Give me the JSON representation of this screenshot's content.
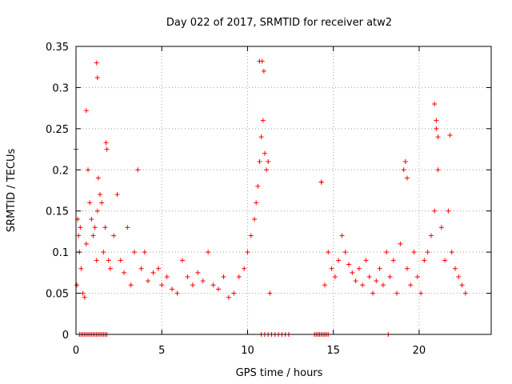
{
  "chart_data": {
    "type": "scatter",
    "title": "Day 022 of 2017, SRMTID for receiver atw2",
    "xlabel": "GPS time / hours",
    "ylabel": "SRMTID / TECUs",
    "xlim": [
      0,
      24.2
    ],
    "ylim": [
      0,
      0.35
    ],
    "xticks": [
      0,
      5,
      10,
      15,
      20
    ],
    "xtick_labels": [
      "0",
      "5",
      "10",
      "15",
      "20"
    ],
    "yticks": [
      0,
      0.05,
      0.1,
      0.15,
      0.2,
      0.25,
      0.3,
      0.35
    ],
    "ytick_labels": [
      "0",
      "0.05",
      "0.1",
      "0.15",
      "0.2",
      "0.25",
      "0.3",
      "0.35"
    ],
    "grid": true,
    "marker": "+",
    "series": [
      {
        "name": "SRMTID",
        "color": "#ff0000",
        "x": [
          0.0,
          0.05,
          0.1,
          0.15,
          0.2,
          0.25,
          0.3,
          0.4,
          0.5,
          0.6,
          0.7,
          0.8,
          0.9,
          1.0,
          1.1,
          1.2,
          1.25,
          1.3,
          1.4,
          1.5,
          1.6,
          1.7,
          1.75,
          1.8,
          1.9,
          2.0,
          2.2,
          2.4,
          2.6,
          2.8,
          3.0,
          3.2,
          3.4,
          3.6,
          3.8,
          4.0,
          4.2,
          4.5,
          4.8,
          5.0,
          5.3,
          5.6,
          5.9,
          6.2,
          6.5,
          6.8,
          7.1,
          7.4,
          7.7,
          8.0,
          8.3,
          8.6,
          8.9,
          9.2,
          9.5,
          9.8,
          10.0,
          10.2,
          10.4,
          10.5,
          10.6,
          10.7,
          10.8,
          10.9,
          11.0,
          11.1,
          11.2,
          11.3,
          0.2,
          0.3,
          0.4,
          0.5,
          0.6,
          0.7,
          0.8,
          0.9,
          1.0,
          1.1,
          1.2,
          1.3,
          1.4,
          1.5,
          1.6,
          1.7,
          1.8,
          10.8,
          11.0,
          11.2,
          11.4,
          11.6,
          11.8,
          12.0,
          12.2,
          12.4,
          13.9,
          14.0,
          14.1,
          14.2,
          14.3,
          14.4,
          14.5,
          14.6,
          14.7,
          18.2,
          14.3,
          14.5,
          14.7,
          14.9,
          15.1,
          15.3,
          15.5,
          15.7,
          15.9,
          16.1,
          16.3,
          16.5,
          16.7,
          16.9,
          17.1,
          17.3,
          17.5,
          17.7,
          17.9,
          18.1,
          18.3,
          18.5,
          18.7,
          18.9,
          19.1,
          19.3,
          19.5,
          19.7,
          19.9,
          20.1,
          20.3,
          20.5,
          20.7,
          20.9,
          21.0,
          21.1,
          21.3,
          21.5,
          21.7,
          21.9,
          22.1,
          22.3,
          22.5,
          22.7,
          19.2,
          19.3,
          20.9,
          21.0,
          21.1,
          21.8,
          14.3,
          1.2,
          1.25,
          0.6,
          10.7,
          10.85,
          10.95
        ],
        "y": [
          0.225,
          0.06,
          0.14,
          0.12,
          0.1,
          0.13,
          0.08,
          0.05,
          0.045,
          0.11,
          0.2,
          0.16,
          0.14,
          0.12,
          0.13,
          0.09,
          0.15,
          0.19,
          0.17,
          0.16,
          0.1,
          0.13,
          0.233,
          0.225,
          0.09,
          0.08,
          0.12,
          0.17,
          0.09,
          0.075,
          0.13,
          0.06,
          0.1,
          0.2,
          0.08,
          0.1,
          0.065,
          0.075,
          0.08,
          0.06,
          0.07,
          0.055,
          0.05,
          0.09,
          0.07,
          0.06,
          0.075,
          0.065,
          0.1,
          0.06,
          0.055,
          0.07,
          0.045,
          0.05,
          0.07,
          0.08,
          0.1,
          0.12,
          0.14,
          0.16,
          0.18,
          0.21,
          0.24,
          0.26,
          0.22,
          0.2,
          0.21,
          0.05,
          0.0,
          0.0,
          0.0,
          0.0,
          0.0,
          0.0,
          0.0,
          0.0,
          0.0,
          0.0,
          0.0,
          0.0,
          0.0,
          0.0,
          0.0,
          0.0,
          0.0,
          0.0,
          0.0,
          0.0,
          0.0,
          0.0,
          0.0,
          0.0,
          0.0,
          0.0,
          0.0,
          0.0,
          0.0,
          0.0,
          0.0,
          0.0,
          0.0,
          0.0,
          0.0,
          0.0,
          0.185,
          0.06,
          0.1,
          0.08,
          0.07,
          0.09,
          0.12,
          0.1,
          0.085,
          0.075,
          0.065,
          0.08,
          0.06,
          0.09,
          0.07,
          0.05,
          0.065,
          0.08,
          0.06,
          0.1,
          0.07,
          0.09,
          0.05,
          0.11,
          0.2,
          0.08,
          0.06,
          0.1,
          0.07,
          0.05,
          0.09,
          0.1,
          0.12,
          0.15,
          0.25,
          0.2,
          0.13,
          0.09,
          0.15,
          0.1,
          0.08,
          0.07,
          0.06,
          0.05,
          0.21,
          0.19,
          0.28,
          0.26,
          0.24,
          0.242,
          0.185,
          0.33,
          0.312,
          0.272,
          0.332,
          0.332,
          0.32
        ]
      }
    ]
  }
}
